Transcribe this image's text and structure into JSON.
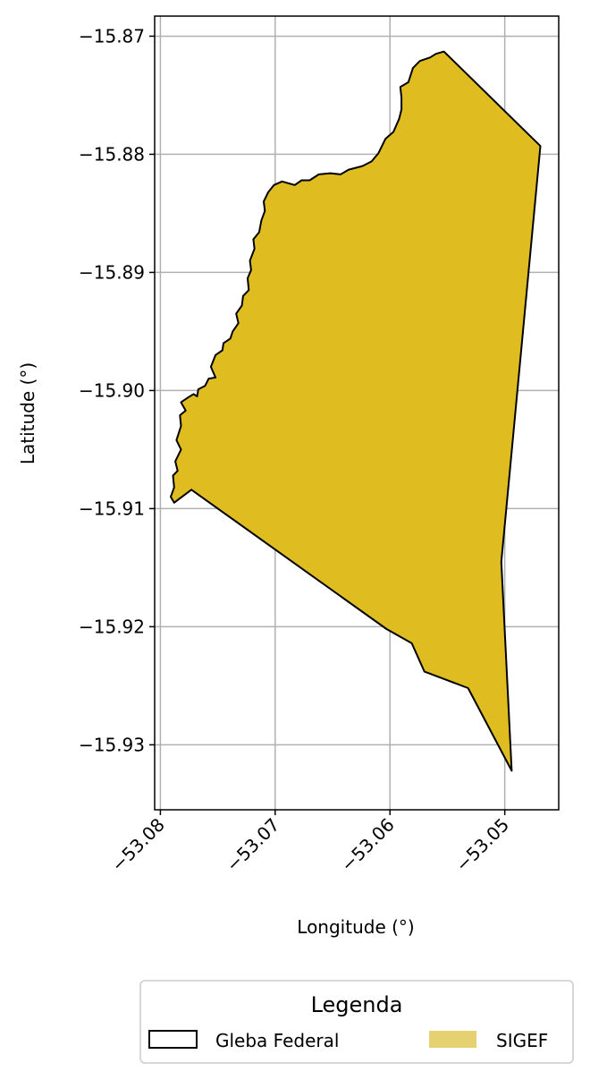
{
  "chart_data": {
    "type": "map",
    "xlabel": "Longitude (°)",
    "ylabel": "Latitude (°)",
    "xlim": [
      -53.0805,
      -53.0453
    ],
    "ylim": [
      -15.9355,
      -15.8683
    ],
    "x_ticks": [
      -53.08,
      -53.07,
      -53.06,
      -53.05
    ],
    "x_tick_labels": [
      "−53.08",
      "−53.07",
      "−53.06",
      "−53.05"
    ],
    "y_ticks": [
      -15.87,
      -15.88,
      -15.89,
      -15.9,
      -15.91,
      -15.92,
      -15.93
    ],
    "y_tick_labels": [
      "−15.87",
      "−15.88",
      "−15.89",
      "−15.90",
      "−15.91",
      "−15.92",
      "−15.93"
    ],
    "grid": true,
    "legend": {
      "title": "Legenda",
      "placement": "bottom-center",
      "entries": [
        {
          "label": "Gleba Federal",
          "style": "outline",
          "color": "#000000"
        },
        {
          "label": "SIGEF",
          "style": "fill",
          "color": "#e6d170"
        }
      ]
    },
    "colors": {
      "fill": "#dfbd20",
      "edge": "#000000",
      "grid": "#b0b0b0"
    },
    "polygon": [
      [
        -53.0553,
        -15.8713
      ],
      [
        -53.0469,
        -15.8793
      ],
      [
        -53.0503,
        -15.9145
      ],
      [
        -53.0494,
        -15.9322
      ],
      [
        -53.0532,
        -15.9252
      ],
      [
        -53.057,
        -15.9238
      ],
      [
        -53.0581,
        -15.9214
      ],
      [
        -53.0603,
        -15.9202
      ],
      [
        -53.0773,
        -15.9084
      ],
      [
        -53.0788,
        -15.9095
      ],
      [
        -53.0791,
        -15.909
      ],
      [
        -53.0788,
        -15.9082
      ],
      [
        -53.0789,
        -15.9072
      ],
      [
        -53.0785,
        -15.9068
      ],
      [
        -53.0787,
        -15.906
      ],
      [
        -53.0782,
        -15.905
      ],
      [
        -53.0786,
        -15.9042
      ],
      [
        -53.0782,
        -15.903
      ],
      [
        -53.0783,
        -15.9021
      ],
      [
        -53.0778,
        -15.9017
      ],
      [
        -53.0782,
        -15.901
      ],
      [
        -53.0776,
        -15.9006
      ],
      [
        -53.0771,
        -15.9003
      ],
      [
        -53.0768,
        -15.9005
      ],
      [
        -53.0767,
        -15.8999
      ],
      [
        -53.0761,
        -15.8996
      ],
      [
        -53.0758,
        -15.899
      ],
      [
        -53.0752,
        -15.8989
      ],
      [
        -53.0756,
        -15.898
      ],
      [
        -53.0752,
        -15.897
      ],
      [
        -53.0746,
        -15.8966
      ],
      [
        -53.0745,
        -15.896
      ],
      [
        -53.0739,
        -15.8956
      ],
      [
        -53.0737,
        -15.895
      ],
      [
        -53.0732,
        -15.8943
      ],
      [
        -53.0734,
        -15.8935
      ],
      [
        -53.0729,
        -15.8928
      ],
      [
        -53.0728,
        -15.892
      ],
      [
        -53.0723,
        -15.8915
      ],
      [
        -53.0724,
        -15.8905
      ],
      [
        -53.0721,
        -15.8898
      ],
      [
        -53.0722,
        -15.889
      ],
      [
        -53.0718,
        -15.888
      ],
      [
        -53.0719,
        -15.8872
      ],
      [
        -53.0714,
        -15.8866
      ],
      [
        -53.0712,
        -15.8856
      ],
      [
        -53.0709,
        -15.8848
      ],
      [
        -53.071,
        -15.884
      ],
      [
        -53.0706,
        -15.8832
      ],
      [
        -53.0701,
        -15.8826
      ],
      [
        -53.0694,
        -15.8823
      ],
      [
        -53.0683,
        -15.8826
      ],
      [
        -53.0677,
        -15.8822
      ],
      [
        -53.067,
        -15.8822
      ],
      [
        -53.0662,
        -15.8817
      ],
      [
        -53.0652,
        -15.8816
      ],
      [
        -53.0643,
        -15.8817
      ],
      [
        -53.0636,
        -15.8813
      ],
      [
        -53.0624,
        -15.881
      ],
      [
        -53.0616,
        -15.8806
      ],
      [
        -53.061,
        -15.8799
      ],
      [
        -53.0604,
        -15.8787
      ],
      [
        -53.0597,
        -15.8781
      ],
      [
        -53.0592,
        -15.877
      ],
      [
        -53.059,
        -15.8762
      ],
      [
        -53.059,
        -15.8752
      ],
      [
        -53.0591,
        -15.8743
      ],
      [
        -53.0584,
        -15.8739
      ],
      [
        -53.058,
        -15.8727
      ],
      [
        -53.0574,
        -15.8721
      ],
      [
        -53.0565,
        -15.8718
      ],
      [
        -53.056,
        -15.8715
      ]
    ]
  }
}
